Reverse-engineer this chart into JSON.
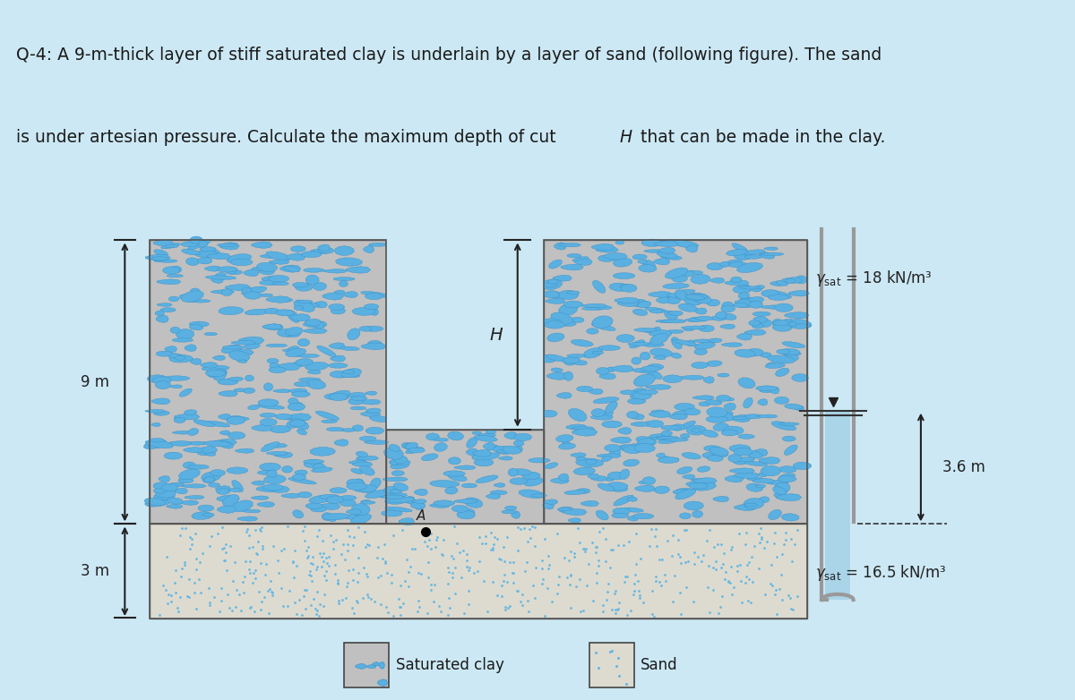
{
  "bg_color": "#cce8f4",
  "clay_bg": "#c0c0c0",
  "clay_blob_fill": "#5ab0e0",
  "clay_blob_edge": "#3890c8",
  "sand_bg": "#dddbd0",
  "sand_dot_color": "#6ab8e0",
  "cut_bg": "#cce8f4",
  "dim_9m": "9 m",
  "dim_3m": "3 m",
  "dim_36m": "3.6 m",
  "label_H": "H",
  "label_A": "A",
  "label_clay": "Saturated clay",
  "label_sand": "Sand",
  "tube_color": "#999999",
  "arrow_color": "#222222",
  "text_color": "#222222",
  "title_line1": "Q-4: A 9-m-thick layer of stiff saturated clay is underlain by a layer of sand (following figure). The sand",
  "title_line2_pre": "is under artesian pressure. Calculate the maximum depth of cut ",
  "title_line2_H": "H",
  "title_line2_post": " that can be made in the clay."
}
